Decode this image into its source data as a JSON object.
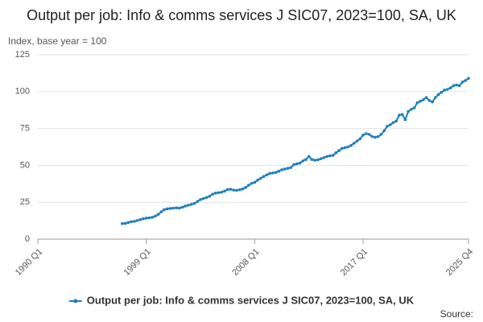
{
  "chart_data": {
    "type": "line",
    "title": "Output per job: Info & comms services J SIC07, 2023=100, SA, UK",
    "y_label": "Index, base year = 100",
    "source": "Source:",
    "categories": [
      "1990 Q1",
      null,
      null,
      null,
      null,
      null,
      null,
      null,
      null,
      null,
      null,
      null,
      null,
      null,
      null,
      null,
      null,
      null,
      null,
      null,
      null,
      null,
      null,
      null,
      null,
      null,
      null,
      null,
      null,
      null,
      null,
      null,
      null,
      null,
      null,
      null,
      "1999 Q1",
      null,
      null,
      null,
      null,
      null,
      null,
      null,
      null,
      null,
      null,
      null,
      null,
      null,
      null,
      null,
      null,
      null,
      null,
      null,
      null,
      null,
      null,
      null,
      null,
      null,
      null,
      null,
      null,
      null,
      null,
      null,
      null,
      null,
      null,
      null,
      "2008 Q1",
      null,
      null,
      null,
      null,
      null,
      null,
      null,
      null,
      null,
      null,
      null,
      null,
      null,
      null,
      null,
      null,
      null,
      null,
      null,
      null,
      null,
      null,
      null,
      null,
      null,
      null,
      null,
      null,
      null,
      null,
      null,
      null,
      null,
      null,
      null,
      "2017 Q1",
      null,
      null,
      null,
      null,
      null,
      null,
      null,
      null,
      null,
      null,
      null,
      null,
      null,
      null,
      null,
      null,
      null,
      null,
      null,
      null,
      null,
      null,
      null,
      null,
      null,
      null,
      null,
      null,
      null,
      null,
      null,
      null,
      null,
      null,
      "2025 Q4"
    ],
    "series": [
      {
        "name": "Output per job: Info & comms services J SIC07, 2023=100, SA, UK",
        "color": "#1f7fbf",
        "values": [
          null,
          null,
          null,
          null,
          null,
          null,
          null,
          null,
          null,
          null,
          null,
          null,
          null,
          null,
          null,
          null,
          null,
          null,
          null,
          null,
          null,
          null,
          null,
          null,
          null,
          null,
          null,
          null,
          10.5,
          10.6,
          11.2,
          11.8,
          12.0,
          12.6,
          13.2,
          13.8,
          14.2,
          14.4,
          14.8,
          15.6,
          16.8,
          18.5,
          20.0,
          20.5,
          20.8,
          21.0,
          21.2,
          21.0,
          21.6,
          22.4,
          23.0,
          23.5,
          24.2,
          25.5,
          26.8,
          27.5,
          28.2,
          29.0,
          30.4,
          31.2,
          31.5,
          31.8,
          32.5,
          33.6,
          33.8,
          33.2,
          33.0,
          33.5,
          34.0,
          35.0,
          36.5,
          37.8,
          38.5,
          40.0,
          41.2,
          42.5,
          43.5,
          44.5,
          44.8,
          45.2,
          46.0,
          47.0,
          47.5,
          48.0,
          48.5,
          50.5,
          51.0,
          51.5,
          53.0,
          54.0,
          56.0,
          54.0,
          53.5,
          53.8,
          54.5,
          55.2,
          56.0,
          56.5,
          56.8,
          58.5,
          60.0,
          61.5,
          62.0,
          62.5,
          63.5,
          65.0,
          66.5,
          68.0,
          70.5,
          71.5,
          71.0,
          69.5,
          69.0,
          69.5,
          71.0,
          73.5,
          76.5,
          77.5,
          79.0,
          80.0,
          84.0,
          84.5,
          81.0,
          86.5,
          88.0,
          89.0,
          92.5,
          93.5,
          94.5,
          96.0,
          94.0,
          93.0,
          96.0,
          98.0,
          99.5,
          101.0,
          101.5,
          102.5,
          104.0,
          104.5,
          104.0,
          106.5,
          107.5,
          109.0
        ]
      }
    ],
    "ylim": [
      0,
      125
    ],
    "yticks": [
      0,
      25,
      50,
      75,
      100,
      125
    ],
    "grid": true,
    "legend": "bottom"
  }
}
